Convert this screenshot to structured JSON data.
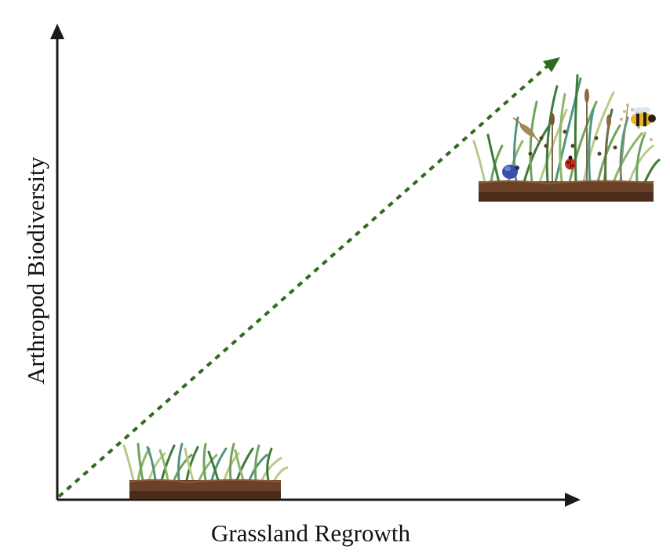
{
  "diagram": {
    "x_axis_label": "Grassland Regrowth",
    "y_axis_label": "Arthropod Biodiversity",
    "trend": "increasing",
    "low_regrowth_scene": [
      "short-grass-tufts",
      "soil-strip"
    ],
    "high_regrowth_scene": [
      "tall-mixed-grasses",
      "seed-heads",
      "soil-strip",
      "blue-beetle",
      "ladybug",
      "bumblebee",
      "grasshopper"
    ]
  },
  "colors": {
    "axis": "#1a1a1a",
    "trend_arrow": "#2f6b1f",
    "soil_top": "#6b4128",
    "soil_bottom": "#4a2c1a",
    "grass_dark": "#3f7a3a",
    "grass_mid": "#6fa35a",
    "grass_light": "#b9c98a",
    "grass_teal": "#4f9680"
  }
}
